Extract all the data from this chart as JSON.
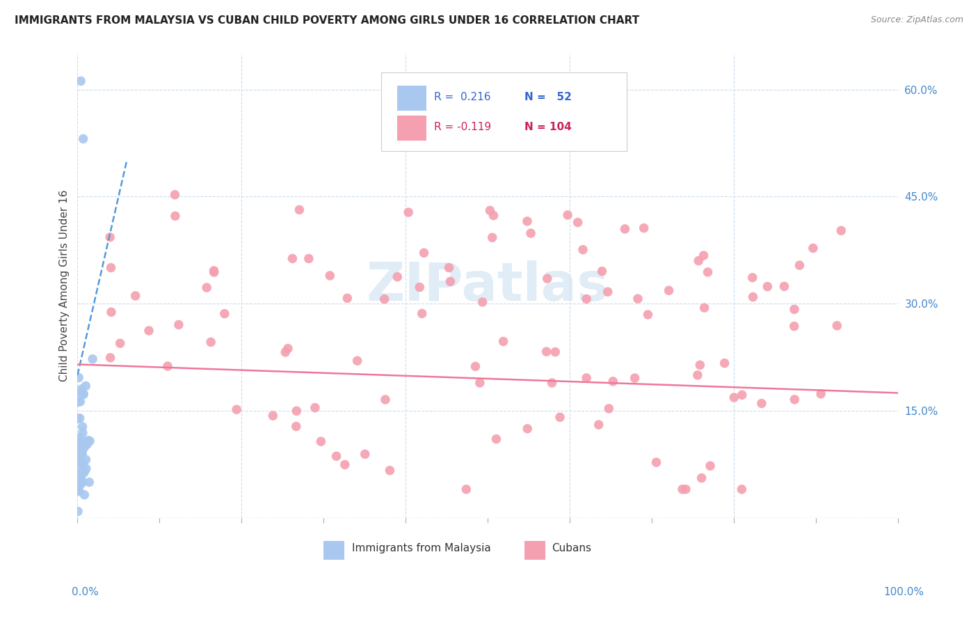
{
  "title": "IMMIGRANTS FROM MALAYSIA VS CUBAN CHILD POVERTY AMONG GIRLS UNDER 16 CORRELATION CHART",
  "source": "Source: ZipAtlas.com",
  "ylabel": "Child Poverty Among Girls Under 16",
  "ytick_vals": [
    0.0,
    0.15,
    0.3,
    0.45,
    0.6
  ],
  "ytick_labels": [
    "",
    "15.0%",
    "30.0%",
    "45.0%",
    "60.0%"
  ],
  "xlim": [
    0.0,
    1.0
  ],
  "ylim": [
    0.0,
    0.65
  ],
  "color_malaysia": "#a8c8f0",
  "color_cuban": "#f4a0b0",
  "color_malaysia_line": "#5599dd",
  "color_cuban_line": "#ee7799",
  "color_grid": "#ccddee",
  "malaysia_seed": 10,
  "cuban_seed": 20
}
